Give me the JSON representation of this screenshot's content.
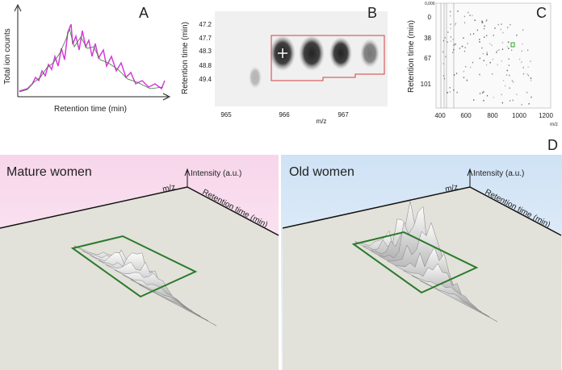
{
  "panel_a": {
    "label": "A",
    "y_label": "Total ion counts",
    "x_label": "Retention time (min)"
  },
  "panel_b": {
    "label": "B",
    "y_label": "Retention time (min)",
    "yticks": [
      47.2,
      47.7,
      48.3,
      48.8,
      49.4
    ],
    "xticks": [
      965,
      966,
      967
    ],
    "x_label": "m/z"
  },
  "panel_c": {
    "label": "C",
    "y_label": "Retention time (min)",
    "y_top": "0,000",
    "yticks": [
      0,
      38,
      67,
      101
    ],
    "xticks": [
      400,
      600,
      800,
      1000,
      1200
    ],
    "x_label": "m/z"
  },
  "panel_d": {
    "label": "D",
    "left": {
      "title": "Mature women",
      "z_label": "Intensity (a.u.)",
      "x_label": "m/z",
      "y_label": "Retention time (min)"
    },
    "right": {
      "title": "Old women",
      "z_label": "Intensity (a.u.)",
      "x_label": "m/z",
      "y_label": "Retention time (min)"
    }
  }
}
